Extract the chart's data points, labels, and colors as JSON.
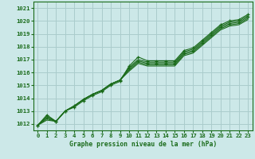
{
  "title": "Graphe pression niveau de la mer (hPa)",
  "bg_color": "#cce8e8",
  "grid_color": "#aacccc",
  "line_color": "#1a6b1a",
  "xlim": [
    -0.5,
    23.5
  ],
  "ylim": [
    1011.5,
    1021.5
  ],
  "yticks": [
    1012,
    1013,
    1014,
    1015,
    1016,
    1017,
    1018,
    1019,
    1020,
    1021
  ],
  "xticks": [
    0,
    1,
    2,
    3,
    4,
    5,
    6,
    7,
    8,
    9,
    10,
    11,
    12,
    13,
    14,
    15,
    16,
    17,
    18,
    19,
    20,
    21,
    22,
    23
  ],
  "lines": [
    [
      1011.9,
      1012.7,
      1012.2,
      1013.0,
      1013.3,
      1013.8,
      1014.2,
      1014.5,
      1015.0,
      1015.3,
      1016.5,
      1017.2,
      1016.9,
      1016.9,
      1016.9,
      1016.9,
      1017.7,
      1017.9,
      1018.5,
      1019.1,
      1019.7,
      1020.0,
      1020.1,
      1020.5
    ],
    [
      1011.9,
      1012.6,
      1012.2,
      1013.0,
      1013.4,
      1013.9,
      1014.3,
      1014.6,
      1015.1,
      1015.4,
      1016.4,
      1017.0,
      1016.8,
      1016.8,
      1016.8,
      1016.8,
      1017.6,
      1017.8,
      1018.4,
      1019.0,
      1019.6,
      1019.9,
      1020.0,
      1020.4
    ],
    [
      1011.9,
      1012.5,
      1012.2,
      1013.0,
      1013.4,
      1013.9,
      1014.3,
      1014.6,
      1015.1,
      1015.4,
      1016.3,
      1016.9,
      1016.7,
      1016.7,
      1016.7,
      1016.7,
      1017.5,
      1017.7,
      1018.3,
      1018.9,
      1019.5,
      1019.8,
      1019.9,
      1020.3
    ],
    [
      1011.9,
      1012.4,
      1012.2,
      1013.0,
      1013.4,
      1013.9,
      1014.3,
      1014.6,
      1015.1,
      1015.4,
      1016.2,
      1016.8,
      1016.6,
      1016.6,
      1016.6,
      1016.6,
      1017.4,
      1017.6,
      1018.2,
      1018.8,
      1019.4,
      1019.7,
      1019.8,
      1020.2
    ],
    [
      1011.9,
      1012.3,
      1012.2,
      1013.0,
      1013.4,
      1013.9,
      1014.3,
      1014.6,
      1015.1,
      1015.4,
      1016.1,
      1016.7,
      1016.5,
      1016.5,
      1016.5,
      1016.5,
      1017.3,
      1017.5,
      1018.1,
      1018.7,
      1019.3,
      1019.6,
      1019.7,
      1020.1
    ]
  ],
  "marker_line_indices": [
    0,
    2
  ],
  "figsize": [
    3.2,
    2.0
  ],
  "dpi": 100
}
